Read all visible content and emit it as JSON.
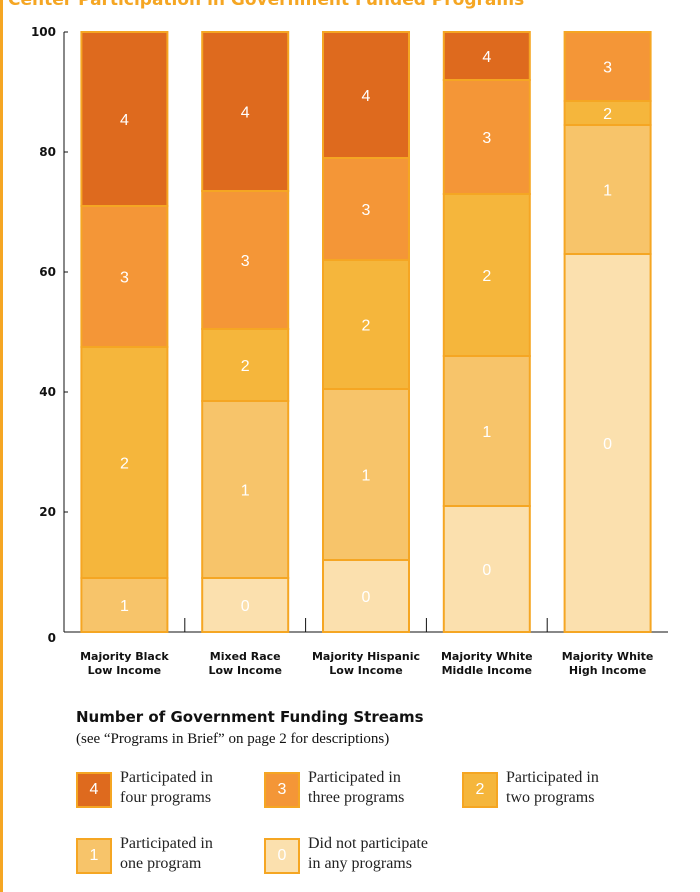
{
  "chart_data": {
    "type": "bar",
    "stacked": true,
    "title": "Center Participation in Government Funded Programs",
    "xlabel": "",
    "ylabel": "",
    "ylim": [
      0,
      100
    ],
    "yticks": [
      0,
      20,
      40,
      60,
      80,
      100
    ],
    "grid": false,
    "categories": [
      {
        "line1": "Majority Black",
        "line2": "Low Income"
      },
      {
        "line1": "Mixed Race",
        "line2": "Low Income"
      },
      {
        "line1": "Majority Hispanic",
        "line2": "Low Income"
      },
      {
        "line1": "Majority White",
        "line2": "Middle Income"
      },
      {
        "line1": "Majority White",
        "line2": "High Income"
      }
    ],
    "series": [
      {
        "name": "0",
        "color": "#fbe0ae",
        "text_color": "#ffffff",
        "values": [
          0,
          9,
          12,
          21,
          63
        ]
      },
      {
        "name": "1",
        "color": "#f7c46a",
        "text_color": "#ffffff",
        "values": [
          9,
          29.5,
          28.5,
          25,
          21.5
        ]
      },
      {
        "name": "2",
        "color": "#f5b63c",
        "text_color": "#ffffff",
        "values": [
          38.5,
          12,
          21.5,
          27,
          4
        ]
      },
      {
        "name": "3",
        "color": "#f49637",
        "text_color": "#ffffff",
        "values": [
          23.5,
          23,
          17,
          19,
          11.5
        ]
      },
      {
        "name": "4",
        "color": "#de6a1e",
        "text_color": "#ffffff",
        "values": [
          29,
          26.5,
          21,
          8,
          0
        ]
      }
    ]
  },
  "legend": {
    "title": "Number of Government Funding Streams",
    "subtitle": "(see “Programs in Brief” on page 2 for descriptions)",
    "items": [
      {
        "key": "4",
        "line1": "Participated in",
        "line2": "four programs",
        "color": "#de6a1e",
        "text_color": "#ffffff"
      },
      {
        "key": "3",
        "line1": "Participated in",
        "line2": "three programs",
        "color": "#f49637",
        "text_color": "#ffffff"
      },
      {
        "key": "2",
        "line1": "Participated in",
        "line2": "two programs",
        "color": "#f5b63c",
        "text_color": "#ffffff"
      },
      {
        "key": "1",
        "line1": "Participated in",
        "line2": "one program",
        "color": "#f7c46a",
        "text_color": "#ffffff"
      },
      {
        "key": "0",
        "line1": "Did not participate",
        "line2": "in any programs",
        "color": "#fbe0ae",
        "text_color": "#ffffff"
      }
    ]
  }
}
